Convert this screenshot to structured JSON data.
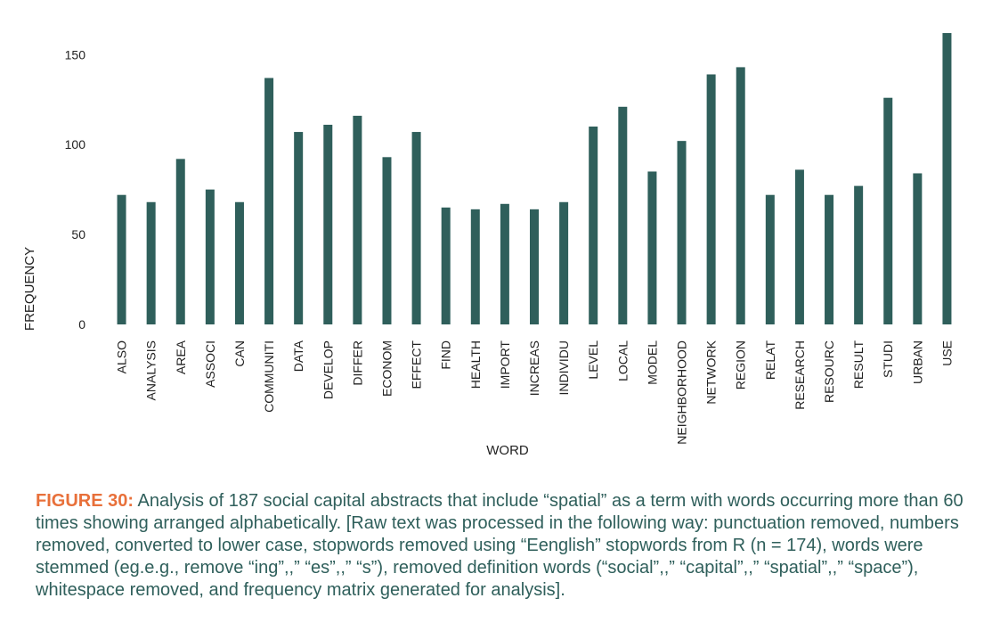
{
  "chart_data": {
    "type": "bar",
    "title": "",
    "xlabel": "WORD",
    "ylabel": "FREQUENCY",
    "ylim": [
      0,
      165
    ],
    "yticks": [
      0,
      50,
      100,
      150
    ],
    "grid": false,
    "bar_color": "#2f5f5b",
    "categories": [
      "ALSO",
      "ANALYSIS",
      "AREA",
      "ASSOCI",
      "CAN",
      "COMMUNITI",
      "DATA",
      "DEVELOP",
      "DIFFER",
      "ECONOM",
      "EFFECT",
      "FIND",
      "HEALTH",
      "IMPORT",
      "INCREAS",
      "INDIVIDU",
      "LEVEL",
      "LOCAL",
      "MODEL",
      "NEIGHBORHOOD",
      "NETWORK",
      "REGION",
      "RELAT",
      "RESEARCH",
      "RESOURC",
      "RESULT",
      "STUDI",
      "URBAN",
      "USE"
    ],
    "values": [
      72,
      68,
      92,
      75,
      68,
      137,
      107,
      111,
      116,
      93,
      107,
      65,
      64,
      67,
      64,
      68,
      110,
      121,
      85,
      102,
      139,
      143,
      72,
      86,
      72,
      77,
      126,
      84,
      162
    ]
  },
  "caption": {
    "label": "FIGURE 30:",
    "text": " Analysis of 187 social capital abstracts that include “spatial” as a term with words occurring more than 60 times showing arranged alphabetically. [Raw text was processed in the following way: punctuation removed, numbers removed, converted to lower case, stopwords removed using “Eenglish” stopwords from R (n = 174), words were stemmed (eg.e.g., remove “ing”,,” “es”,,” “s”), removed definition words (“social”,,” “capital”,,” “spatial”,,” “space”), whitespace removed, and frequency matrix generated for analysis].",
    "label_color": "#e8703a",
    "text_color": "#2f5f5b"
  }
}
